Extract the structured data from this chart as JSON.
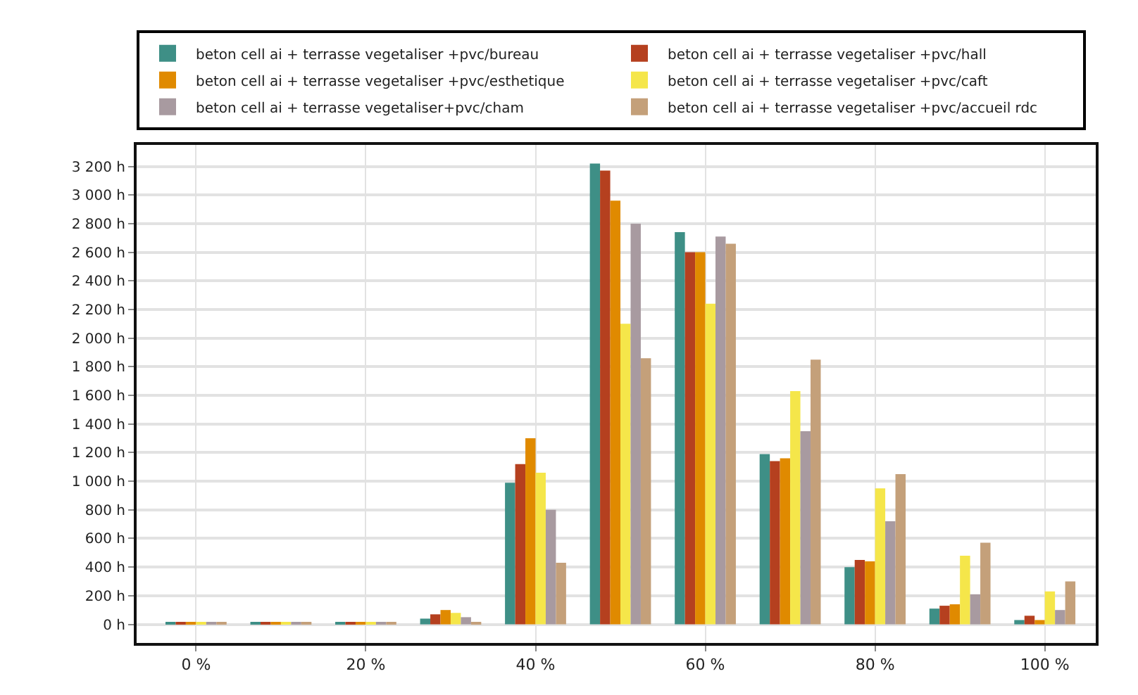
{
  "chart_data": {
    "type": "bar",
    "x": [
      0,
      10,
      20,
      30,
      40,
      50,
      60,
      70,
      80,
      90,
      100
    ],
    "series": [
      {
        "name": "beton cell ai + terrasse vegetaliser +pvc/bureau",
        "color": "#3e8f86",
        "values": [
          10,
          10,
          10,
          40,
          990,
          3220,
          2740,
          1190,
          400,
          110,
          30
        ]
      },
      {
        "name": "beton cell ai + terrasse vegetaliser +pvc/hall",
        "color": "#b5401f",
        "values": [
          10,
          10,
          10,
          70,
          1120,
          3170,
          2600,
          1140,
          450,
          130,
          60
        ]
      },
      {
        "name": "beton cell ai + terrasse vegetaliser +pvc/esthetique",
        "color": "#e08a00",
        "values": [
          10,
          10,
          10,
          100,
          1300,
          2960,
          2600,
          1160,
          440,
          140,
          30
        ]
      },
      {
        "name": "beton cell ai + terrasse vegetaliser +pvc/caft",
        "color": "#f5e64a",
        "values": [
          10,
          10,
          10,
          80,
          1060,
          2100,
          2240,
          1630,
          950,
          480,
          230
        ]
      },
      {
        "name": "beton cell ai + terrasse vegetaliser+pvc/cham",
        "color": "#a89aa0",
        "values": [
          10,
          10,
          10,
          50,
          800,
          2800,
          2710,
          1350,
          720,
          210,
          100
        ]
      },
      {
        "name": "beton cell ai + terrasse vegetaliser +pvc/accueil rdc",
        "color": "#c4a07a",
        "values": [
          10,
          10,
          10,
          10,
          430,
          1860,
          2660,
          1850,
          1050,
          570,
          300
        ]
      }
    ],
    "xlim": [
      -7,
      106
    ],
    "xticks": [
      {
        "value": 0,
        "label": "0 %"
      },
      {
        "value": 20,
        "label": "20 %"
      },
      {
        "value": 40,
        "label": "40 %"
      },
      {
        "value": 60,
        "label": "60 %"
      },
      {
        "value": 80,
        "label": "80 %"
      },
      {
        "value": 100,
        "label": "100 %"
      }
    ],
    "ylim": [
      -130,
      3350
    ],
    "yticks": [
      {
        "value": 0,
        "label": "0 h"
      },
      {
        "value": 200,
        "label": "200 h"
      },
      {
        "value": 400,
        "label": "400 h"
      },
      {
        "value": 600,
        "label": "600 h"
      },
      {
        "value": 800,
        "label": "800 h"
      },
      {
        "value": 1000,
        "label": "1 000 h"
      },
      {
        "value": 1200,
        "label": "1 200 h"
      },
      {
        "value": 1400,
        "label": "1 400 h"
      },
      {
        "value": 1600,
        "label": "1 600 h"
      },
      {
        "value": 1800,
        "label": "1 800 h"
      },
      {
        "value": 2000,
        "label": "2 000 h"
      },
      {
        "value": 2200,
        "label": "2 200 h"
      },
      {
        "value": 2400,
        "label": "2 400 h"
      },
      {
        "value": 2600,
        "label": "2 600 h"
      },
      {
        "value": 2800,
        "label": "2 800 h"
      },
      {
        "value": 3000,
        "label": "3 000 h"
      },
      {
        "value": 3200,
        "label": "3 200 h"
      }
    ],
    "grid": true,
    "legend": "top"
  }
}
